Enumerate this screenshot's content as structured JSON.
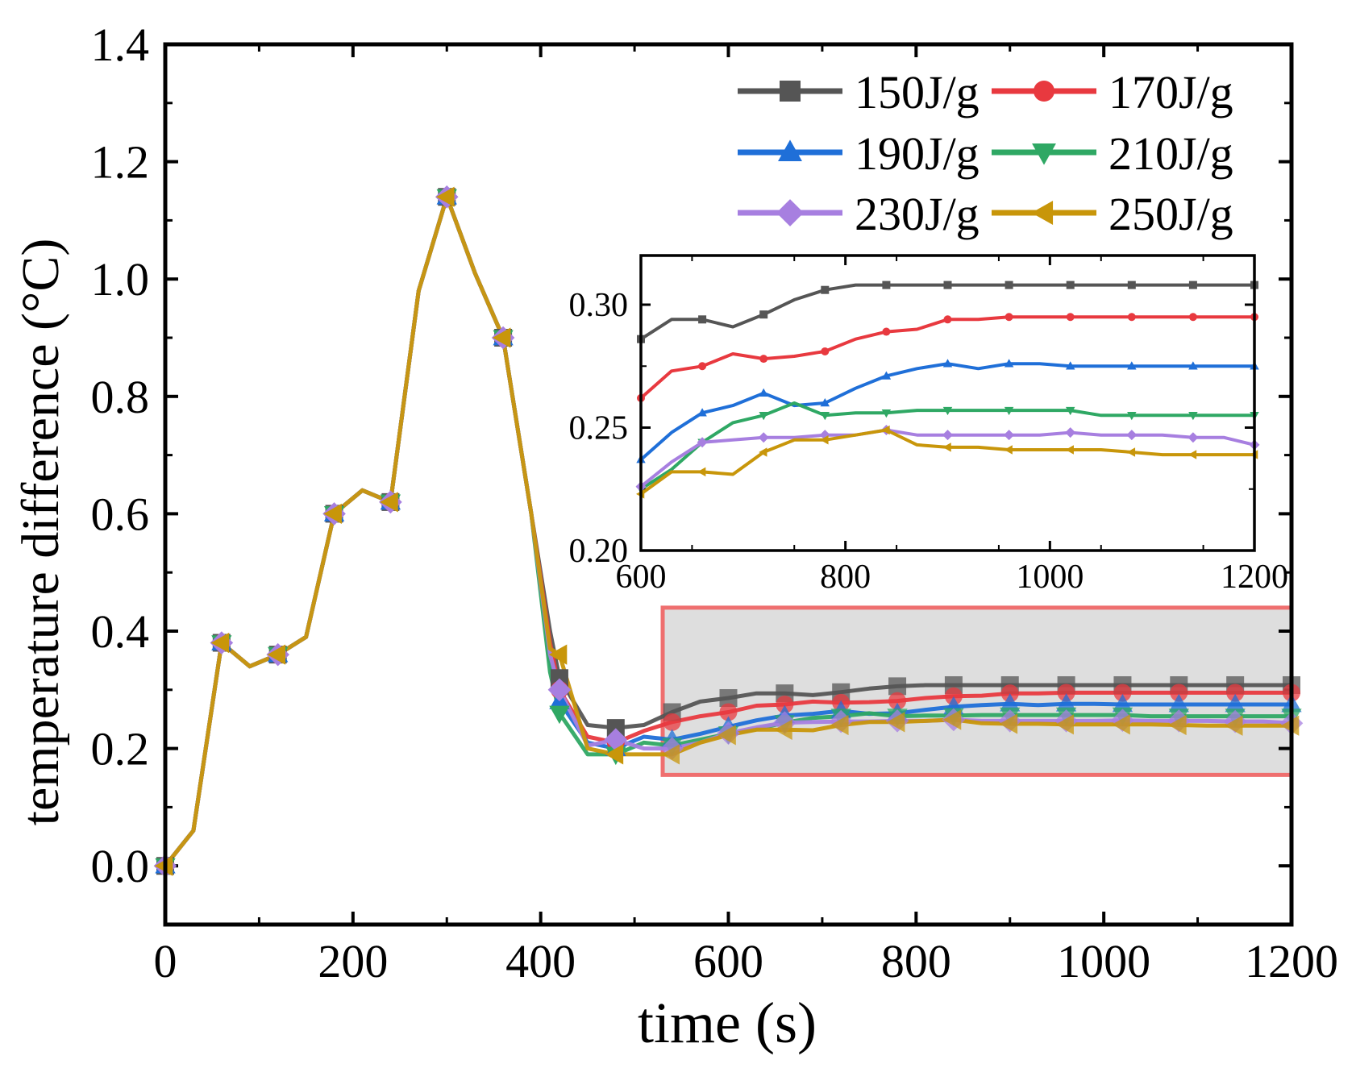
{
  "chart_data": {
    "type": "line",
    "xlabel": "time (s)",
    "ylabel": "temperature difference (°C)",
    "xlim": [
      0,
      1200
    ],
    "ylim": [
      -0.1,
      1.4
    ],
    "xticks": [
      0,
      200,
      400,
      600,
      800,
      1000,
      1200
    ],
    "yticks": [
      "0.0",
      "0.2",
      "0.4",
      "0.6",
      "0.8",
      "1.0",
      "1.2",
      "1.4"
    ],
    "legend_position": "top-right",
    "x": [
      0,
      30,
      60,
      90,
      120,
      150,
      180,
      210,
      240,
      270,
      300,
      330,
      360,
      390,
      410,
      420,
      450,
      480,
      510,
      540,
      570,
      600,
      630,
      660,
      690,
      720,
      750,
      780,
      810,
      840,
      870,
      900,
      930,
      960,
      990,
      1020,
      1050,
      1080,
      1110,
      1140,
      1170,
      1200
    ],
    "series": [
      {
        "name": "150J/g",
        "color": "#555555",
        "marker": "square",
        "values": [
          0,
          0.06,
          0.38,
          0.34,
          0.36,
          0.39,
          0.6,
          0.64,
          0.62,
          0.98,
          1.14,
          1.01,
          0.9,
          0.6,
          0.4,
          0.32,
          0.24,
          0.235,
          0.24,
          0.262,
          0.28,
          0.286,
          0.294,
          0.294,
          0.291,
          0.296,
          0.302,
          0.306,
          0.308,
          0.308,
          0.308,
          0.308,
          0.308,
          0.308,
          0.308,
          0.308,
          0.308,
          0.308,
          0.308,
          0.308,
          0.308,
          0.308
        ]
      },
      {
        "name": "170J/g",
        "color": "#e8393f",
        "marker": "circle",
        "values": [
          0,
          0.06,
          0.38,
          0.34,
          0.36,
          0.39,
          0.6,
          0.64,
          0.62,
          0.98,
          1.14,
          1.01,
          0.9,
          0.6,
          0.38,
          0.3,
          0.22,
          0.21,
          0.23,
          0.245,
          0.255,
          0.262,
          0.273,
          0.275,
          0.28,
          0.278,
          0.279,
          0.281,
          0.286,
          0.289,
          0.29,
          0.294,
          0.294,
          0.295,
          0.295,
          0.295,
          0.295,
          0.295,
          0.295,
          0.295,
          0.295,
          0.295
        ]
      },
      {
        "name": "190J/g",
        "color": "#1f6fd8",
        "marker": "triangle-up",
        "values": [
          0,
          0.06,
          0.38,
          0.34,
          0.36,
          0.39,
          0.6,
          0.64,
          0.62,
          0.98,
          1.14,
          1.01,
          0.9,
          0.6,
          0.35,
          0.28,
          0.21,
          0.2,
          0.22,
          0.215,
          0.225,
          0.237,
          0.248,
          0.256,
          0.259,
          0.264,
          0.259,
          0.26,
          0.266,
          0.271,
          0.274,
          0.276,
          0.274,
          0.276,
          0.276,
          0.275,
          0.275,
          0.275,
          0.275,
          0.275,
          0.275,
          0.275
        ]
      },
      {
        "name": "210J/g",
        "color": "#2fa864",
        "marker": "triangle-down",
        "values": [
          0,
          0.06,
          0.38,
          0.34,
          0.36,
          0.39,
          0.6,
          0.64,
          0.62,
          0.98,
          1.14,
          1.01,
          0.9,
          0.6,
          0.33,
          0.26,
          0.19,
          0.19,
          0.21,
          0.205,
          0.215,
          0.225,
          0.233,
          0.244,
          0.252,
          0.255,
          0.26,
          0.255,
          0.256,
          0.256,
          0.257,
          0.257,
          0.257,
          0.257,
          0.257,
          0.257,
          0.255,
          0.255,
          0.255,
          0.255,
          0.255,
          0.255
        ]
      },
      {
        "name": "230J/g",
        "color": "#a77fe0",
        "marker": "diamond",
        "values": [
          0,
          0.06,
          0.38,
          0.34,
          0.36,
          0.39,
          0.6,
          0.64,
          0.62,
          0.98,
          1.14,
          1.01,
          0.9,
          0.6,
          0.36,
          0.3,
          0.205,
          0.215,
          0.2,
          0.2,
          0.21,
          0.226,
          0.236,
          0.244,
          0.245,
          0.246,
          0.246,
          0.247,
          0.247,
          0.249,
          0.247,
          0.247,
          0.247,
          0.247,
          0.247,
          0.248,
          0.247,
          0.247,
          0.247,
          0.246,
          0.246,
          0.243
        ]
      },
      {
        "name": "250J/g",
        "color": "#c8960a",
        "marker": "triangle-left",
        "values": [
          0,
          0.06,
          0.38,
          0.34,
          0.36,
          0.39,
          0.6,
          0.64,
          0.62,
          0.98,
          1.14,
          1.01,
          0.9,
          0.6,
          0.37,
          0.36,
          0.2,
          0.19,
          0.19,
          0.19,
          0.21,
          0.223,
          0.232,
          0.232,
          0.231,
          0.24,
          0.245,
          0.245,
          0.247,
          0.249,
          0.243,
          0.242,
          0.242,
          0.241,
          0.241,
          0.241,
          0.241,
          0.24,
          0.239,
          0.239,
          0.239,
          0.239
        ]
      }
    ],
    "highlight_region": {
      "x": [
        530,
        1200
      ],
      "y": [
        0.155,
        0.44
      ],
      "fill": "#dedede",
      "stroke": "#ef6f6f"
    },
    "inset": {
      "xlim": [
        600,
        1200
      ],
      "ylim": [
        0.2,
        0.32
      ],
      "xticks": [
        600,
        800,
        1000,
        1200
      ],
      "yticks": [
        "0.20",
        "0.25",
        "0.30"
      ]
    }
  }
}
